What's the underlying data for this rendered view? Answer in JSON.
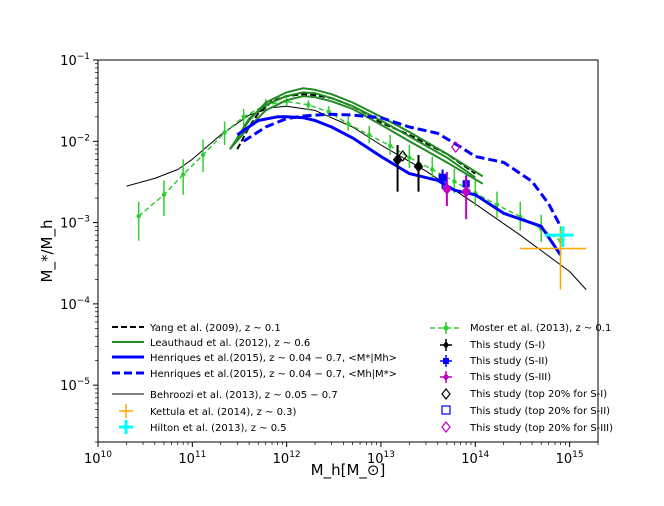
{
  "chart_data": {
    "type": "line",
    "title": "",
    "xlabel": "M_h[M_⊙]",
    "ylabel": "M_*/M_h",
    "xscale": "log",
    "yscale": "log",
    "xlim": [
      10000000000.0,
      2000000000000000.0
    ],
    "ylim": [
      2e-06,
      0.1
    ],
    "x_ticks": [
      {
        "value": 10000000000.0,
        "base": "10",
        "exp": "10"
      },
      {
        "value": 100000000000.0,
        "base": "10",
        "exp": "11"
      },
      {
        "value": 1000000000000.0,
        "base": "10",
        "exp": "12"
      },
      {
        "value": 10000000000000.0,
        "base": "10",
        "exp": "13"
      },
      {
        "value": 100000000000000.0,
        "base": "10",
        "exp": "14"
      },
      {
        "value": 1000000000000000.0,
        "base": "10",
        "exp": "15"
      }
    ],
    "y_ticks": [
      {
        "value": 1e-05,
        "base": "10",
        "exp": "−5"
      },
      {
        "value": 0.0001,
        "base": "10",
        "exp": "−4"
      },
      {
        "value": 0.001,
        "base": "10",
        "exp": "−3"
      },
      {
        "value": 0.01,
        "base": "10",
        "exp": "−2"
      },
      {
        "value": 0.1,
        "base": "10",
        "exp": "−1"
      }
    ],
    "legend": {
      "placement": "bottom",
      "left": [
        "Yang et al. (2009), z ~ 0.1",
        "Leauthaud et al. (2012), z ~ 0.6",
        "Henriques et al.(2015), z ~ 0.04 − 0.7, <M*|Mh>",
        "Henriques et al.(2015), z ~ 0.04 − 0.7, <Mh|M*>",
        "Behroozi et al. (2013), z ~ 0.05 − 0.7",
        "Kettula et al. (2014), z ~ 0.3)",
        "Hilton et al. (2013), z ~ 0.5"
      ],
      "right": [
        "Moster et al. (2013), z ~ 0.1",
        "This study (S-I)",
        "This study (S-II)",
        "This study (S-III)",
        "This study (top 20% for S-I)",
        "This study (top 20% for S-II)",
        "This study (top 20% for S-III)"
      ]
    },
    "colors": {
      "yang": "#000000",
      "leauthaud": "#228B22",
      "henriques": "#0000ff",
      "behroozi": "#000000",
      "kettula": "#ffa500",
      "hilton": "#00ffff",
      "moster": "#32cd32",
      "s1": "#000000",
      "s2": "#0000ff",
      "s3": "#c000c0"
    },
    "series": [
      {
        "name": "Yang et al. (2009), z ~ 0.1",
        "x": [
          300000000000.0,
          400000000000.0,
          500000000000.0,
          700000000000.0,
          1000000000000.0,
          1500000000000.0,
          2000000000000.0,
          3000000000000.0,
          5000000000000.0,
          8000000000000.0,
          10000000000000.0,
          20000000000000.0,
          50000000000000.0,
          100000000000000.0
        ],
        "y": [
          0.008,
          0.015,
          0.022,
          0.031,
          0.036,
          0.038,
          0.037,
          0.034,
          0.027,
          0.02,
          0.017,
          0.012,
          0.007,
          0.004
        ]
      },
      {
        "name": "Leauthaud et al. (2012) upper",
        "x": [
          250000000000.0,
          400000000000.0,
          600000000000.0,
          1000000000000.0,
          1500000000000.0,
          2000000000000.0,
          3000000000000.0,
          5000000000000.0,
          10000000000000.0,
          20000000000000.0,
          50000000000000.0,
          120000000000000.0
        ],
        "y": [
          0.008,
          0.018,
          0.03,
          0.04,
          0.045,
          0.043,
          0.038,
          0.03,
          0.02,
          0.013,
          0.007,
          0.0037
        ]
      },
      {
        "name": "Leauthaud et al. (2012) lower",
        "x": [
          250000000000.0,
          400000000000.0,
          600000000000.0,
          1000000000000.0,
          1500000000000.0,
          2000000000000.0,
          3000000000000.0,
          5000000000000.0,
          10000000000000.0,
          20000000000000.0,
          50000000000000.0,
          120000000000000.0
        ],
        "y": [
          0.008,
          0.015,
          0.024,
          0.032,
          0.036,
          0.035,
          0.031,
          0.025,
          0.016,
          0.01,
          0.0055,
          0.003
        ]
      },
      {
        "name": "Leauthaud et al. (2012) central",
        "x": [
          300000000000.0,
          400000000000.0,
          600000000000.0,
          1000000000000.0,
          1500000000000.0,
          2000000000000.0,
          3000000000000.0,
          5000000000000.0,
          10000000000000.0,
          20000000000000.0,
          50000000000000.0,
          100000000000000.0
        ],
        "y": [
          0.011,
          0.019,
          0.028,
          0.036,
          0.04,
          0.039,
          0.034,
          0.027,
          0.018,
          0.0115,
          0.0063,
          0.0036
        ]
      },
      {
        "name": "Henriques <M*|Mh>",
        "x": [
          300000000000.0,
          500000000000.0,
          800000000000.0,
          1000000000000.0,
          1500000000000.0,
          2000000000000.0,
          3000000000000.0,
          5000000000000.0,
          10000000000000.0,
          20000000000000.0,
          40000000000000.0,
          60000000000000.0,
          100000000000000.0,
          200000000000000.0,
          500000000000000.0,
          800000000000000.0
        ],
        "y": [
          0.012,
          0.018,
          0.02,
          0.02,
          0.0195,
          0.018,
          0.015,
          0.011,
          0.0065,
          0.004,
          0.0033,
          0.0025,
          0.0022,
          0.0013,
          0.0009,
          0.0004
        ]
      },
      {
        "name": "Henriques <Mh|M*>",
        "x": [
          350000000000.0,
          600000000000.0,
          1000000000000.0,
          1500000000000.0,
          2000000000000.0,
          3000000000000.0,
          5000000000000.0,
          10000000000000.0,
          20000000000000.0,
          40000000000000.0,
          70000000000000.0,
          100000000000000.0,
          200000000000000.0,
          400000000000000.0,
          600000000000000.0,
          800000000000000.0
        ],
        "y": [
          0.01,
          0.015,
          0.019,
          0.0205,
          0.021,
          0.0215,
          0.021,
          0.0195,
          0.015,
          0.0125,
          0.0085,
          0.0065,
          0.0055,
          0.0032,
          0.0017,
          0.0009
        ]
      },
      {
        "name": "Behroozi et al. (2013)",
        "x": [
          20000000000.0,
          40000000000.0,
          70000000000.0,
          100000000000.0,
          200000000000.0,
          400000000000.0,
          700000000000.0,
          1000000000000.0,
          2000000000000.0,
          5000000000000.0,
          10000000000000.0,
          30000000000000.0,
          100000000000000.0,
          300000000000000.0,
          1000000000000000.0,
          1500000000000000.0
        ],
        "y": [
          0.0028,
          0.0035,
          0.0045,
          0.006,
          0.012,
          0.021,
          0.026,
          0.027,
          0.024,
          0.015,
          0.009,
          0.0043,
          0.0017,
          0.0007,
          0.00025,
          0.00015
        ]
      },
      {
        "name": "Moster et al. (2013), z ~ 0.1",
        "x": [
          27000000000.0,
          50000000000.0,
          80000000000.0,
          130000000000.0,
          220000000000.0,
          350000000000.0,
          600000000000.0,
          1000000000000.0,
          1700000000000.0,
          2800000000000.0,
          4500000000000.0,
          7500000000000.0,
          12500000000000.0,
          20000000000000.0,
          35000000000000.0,
          60000000000000.0,
          100000000000000.0,
          170000000000000.0,
          300000000000000.0,
          500000000000000.0,
          800000000000000.0
        ],
        "y": [
          0.0012,
          0.0022,
          0.0039,
          0.0068,
          0.0128,
          0.02,
          0.028,
          0.031,
          0.028,
          0.023,
          0.0163,
          0.012,
          0.0088,
          0.0063,
          0.0045,
          0.0032,
          0.0023,
          0.00165,
          0.00118,
          0.00084,
          0.0006
        ],
        "ylo": [
          0.0006,
          0.0012,
          0.0022,
          0.0042,
          0.009,
          0.015,
          0.024,
          0.027,
          0.024,
          0.02,
          0.0135,
          0.0095,
          0.0068,
          0.0047,
          0.0033,
          0.0023,
          0.0016,
          0.00115,
          0.0008,
          0.00058,
          0.0004
        ],
        "yhi": [
          0.0018,
          0.0033,
          0.006,
          0.0105,
          0.0175,
          0.025,
          0.033,
          0.035,
          0.032,
          0.027,
          0.02,
          0.0155,
          0.012,
          0.009,
          0.0065,
          0.0046,
          0.0033,
          0.0024,
          0.0018,
          0.00125,
          0.0009
        ]
      },
      {
        "name": "Kettula et al. (2014)",
        "x": [
          800000000000000.0
        ],
        "y": [
          0.00048
        ],
        "xlo": [
          300000000000000.0
        ],
        "xhi": [
          1500000000000000.0
        ],
        "ylo": [
          0.00015
        ],
        "yhi": [
          0.0008
        ]
      },
      {
        "name": "Hilton et al. (2013)",
        "x": [
          850000000000000.0
        ],
        "y": [
          0.0007
        ],
        "xlo": [
          550000000000000.0
        ],
        "xhi": [
          1100000000000000.0
        ],
        "ylo": [
          0.0005
        ],
        "yhi": [
          0.0009
        ]
      },
      {
        "name": "This study (S-I)",
        "x": [
          15000000000000.0,
          25000000000000.0
        ],
        "y": [
          0.0059,
          0.0049
        ],
        "ylo": [
          0.0024,
          0.0024
        ],
        "yhi": [
          0.009,
          0.0068
        ]
      },
      {
        "name": "This study (S-II)",
        "x": [
          45000000000000.0,
          80000000000000.0
        ],
        "y": [
          0.0036,
          0.003
        ],
        "ylo": [
          0.0026,
          0.002
        ],
        "yhi": [
          0.0045,
          0.0038
        ]
      },
      {
        "name": "This study (S-III)",
        "x": [
          50000000000000.0,
          80000000000000.0
        ],
        "y": [
          0.0026,
          0.0024
        ],
        "ylo": [
          0.0016,
          0.0011
        ],
        "yhi": [
          0.0042,
          0.0037
        ]
      },
      {
        "name": "This study (top 20% for S-I)",
        "x": [
          17000000000000.0
        ],
        "y": [
          0.0066
        ]
      },
      {
        "name": "This study (top 20% for S-II)",
        "x": [
          45000000000000.0
        ],
        "y": [
          0.0035
        ]
      },
      {
        "name": "This study (top 20% for S-III)",
        "x": [
          62000000000000.0
        ],
        "y": [
          0.0085
        ]
      }
    ]
  }
}
